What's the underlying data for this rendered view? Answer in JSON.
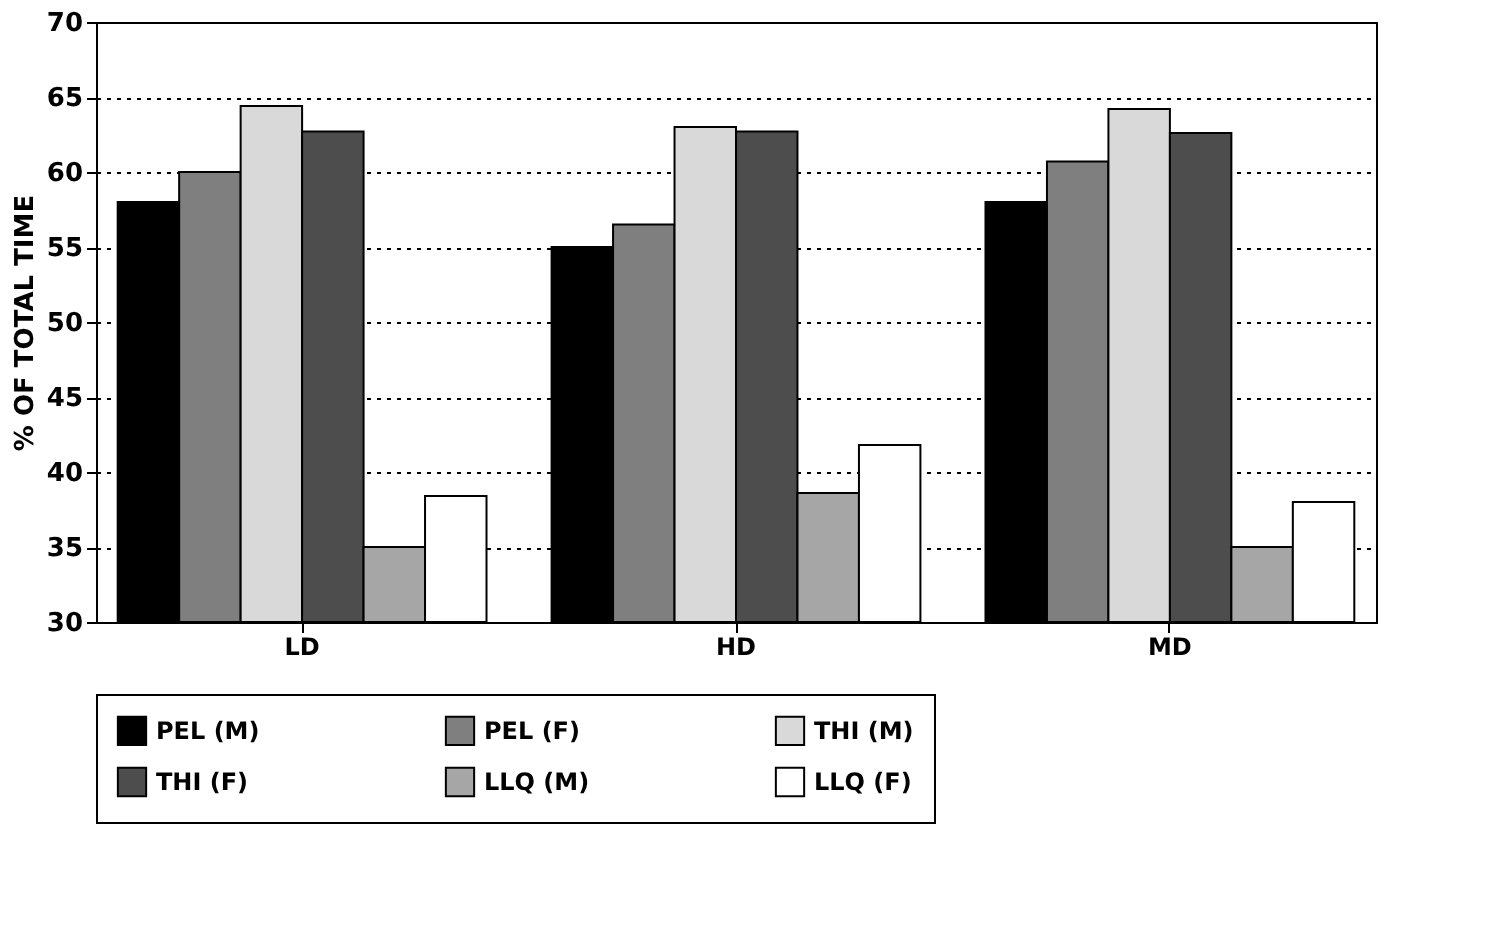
{
  "chart_data": {
    "type": "bar",
    "ylabel": "% OF TOTAL TIME",
    "categories": [
      "LD",
      "HD",
      "MD"
    ],
    "series": [
      {
        "name": "PEL (M)",
        "color": "#000000",
        "values": [
          58,
          55,
          58
        ]
      },
      {
        "name": "PEL (F)",
        "color": "#7f7f7f",
        "values": [
          60,
          56.5,
          60.7
        ]
      },
      {
        "name": "THI (M)",
        "color": "#d9d9d9",
        "values": [
          64.4,
          63,
          64.2
        ]
      },
      {
        "name": "THI (F)",
        "color": "#4d4d4d",
        "values": [
          62.7,
          62.7,
          62.6
        ]
      },
      {
        "name": "LLQ (M)",
        "color": "#a6a6a6",
        "values": [
          35,
          38.6,
          35
        ]
      },
      {
        "name": "LLQ (F)",
        "color": "#ffffff",
        "values": [
          38.4,
          41.8,
          38
        ]
      }
    ],
    "ylim": [
      30,
      70
    ],
    "yticks": [
      30,
      35,
      40,
      45,
      50,
      55,
      60,
      65,
      70
    ],
    "grid": "y",
    "legend": "bottom"
  }
}
